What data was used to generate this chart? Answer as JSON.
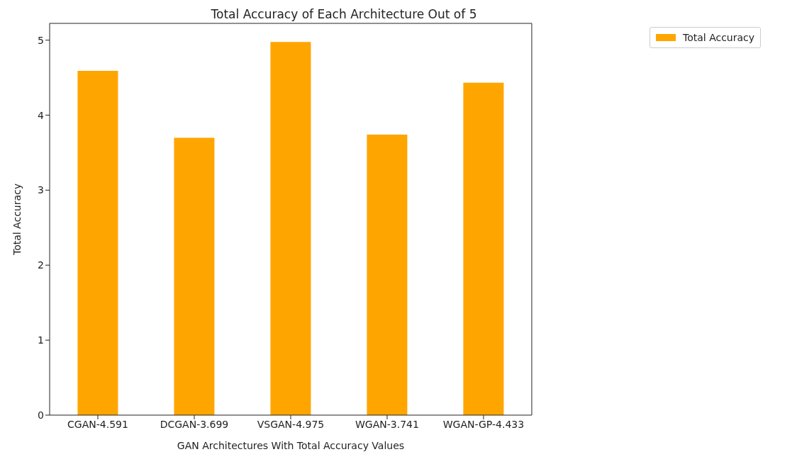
{
  "chart_data": {
    "type": "bar",
    "title": "Total Accuracy of Each Architecture Out of 5",
    "xlabel": "GAN Architectures With Total Accuracy Values",
    "ylabel": "Total Accuracy",
    "categories": [
      "CGAN-4.591",
      "DCGAN-3.699",
      "VSGAN-4.975",
      "WGAN-3.741",
      "WGAN-GP-4.433"
    ],
    "series": [
      {
        "name": "Total Accuracy",
        "color": "#ffa500",
        "values": [
          4.591,
          3.699,
          4.975,
          3.741,
          4.433
        ]
      }
    ],
    "ylim": [
      0,
      5.224
    ],
    "yticks": [
      0,
      1,
      2,
      3,
      4,
      5
    ],
    "legend": "top right"
  }
}
